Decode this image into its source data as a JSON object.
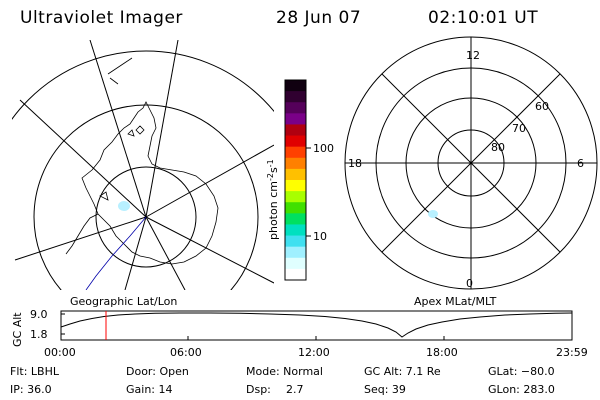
{
  "header": {
    "instrument": "Ultraviolet Imager",
    "date": "28 Jun 07",
    "time": "02:10:01 UT"
  },
  "geo_map": {
    "label": "Geographic Lat/Lon",
    "region": "Antarctica",
    "bright_spot_color": "#b8f0ff",
    "coast_color": "#000000",
    "track_color": "#0000aa"
  },
  "colorbar": {
    "unit_main": "photon cm",
    "unit_exp1": "-2",
    "unit_mid": "s",
    "unit_exp2": "-1",
    "ticks": [
      "100",
      "10"
    ],
    "scale": "log",
    "colors_top_to_bottom": [
      "#100010",
      "#300030",
      "#55005a",
      "#7a0088",
      "#b00010",
      "#e00000",
      "#ff4000",
      "#ff8000",
      "#ffc000",
      "#ffff00",
      "#a8ff00",
      "#40e000",
      "#00e060",
      "#00e0c0",
      "#40e0f0",
      "#a0f0ff",
      "#e0ffff",
      "#ffffff"
    ]
  },
  "polar_plot": {
    "label": "Apex MLat/MLT",
    "mlt_labels": [
      "12",
      "18",
      "6",
      "0"
    ],
    "lat_labels": [
      "60",
      "70",
      "80"
    ],
    "spot_color": "#b8f0ff"
  },
  "altitude_panel": {
    "ylabel": "GC Alt",
    "y_ticks": [
      "9.0",
      "1.8"
    ],
    "x_ticks": [
      "00:00",
      "06:00",
      "12:00",
      "18:00",
      "23:59"
    ],
    "current_time_marker": "02:10",
    "marker_color": "#ff0000"
  },
  "status": {
    "flt": "Flt: LBHL",
    "ip": "IP: 36.0",
    "door": "Door: Open",
    "gain": "Gain: 14",
    "mode": "Mode: Normal",
    "dsp_label": "Dsp:",
    "dsp_value": "2.7",
    "gcalt": "GC Alt: 7.1 Re",
    "seq": "Seq: 39",
    "glat": "GLat: −80.0",
    "glon": "GLon: 283.0"
  }
}
